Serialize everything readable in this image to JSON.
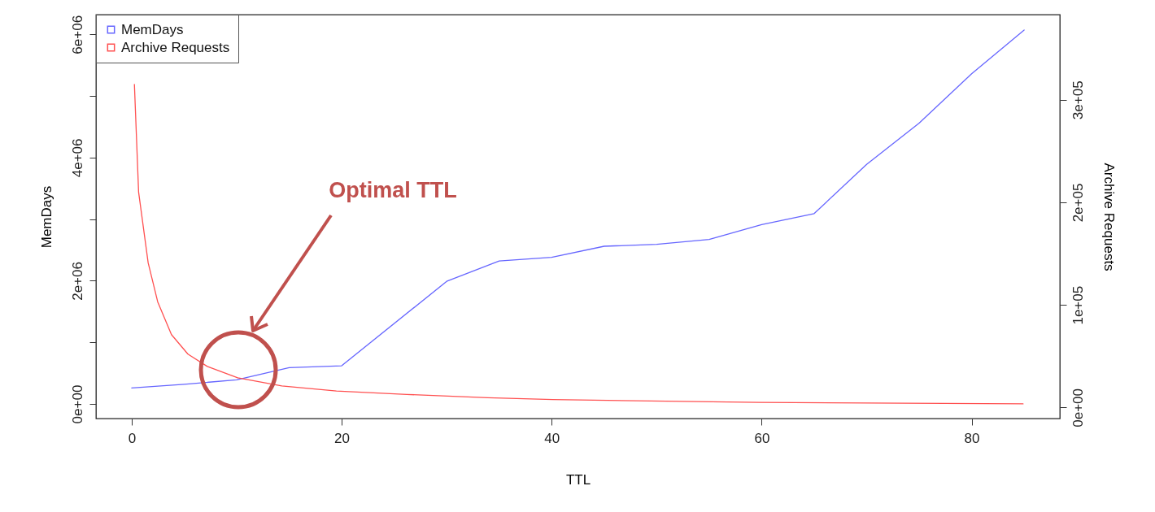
{
  "chart_data": {
    "type": "line",
    "xlabel": "TTL",
    "ylabel": "MemDays",
    "y2label": "Archive Requests",
    "xlim": [
      -3.4,
      88.4
    ],
    "xticks": [
      0,
      20,
      40,
      60,
      80
    ],
    "ylim": [
      -237000,
      6320000
    ],
    "yticks": [
      {
        "value": 0,
        "label": "0e+00"
      },
      {
        "value": 1000000,
        "label": null
      },
      {
        "value": 2000000,
        "label": "2e+06"
      },
      {
        "value": 3000000,
        "label": null
      },
      {
        "value": 4000000,
        "label": "4e+06"
      },
      {
        "value": 5000000,
        "label": null
      },
      {
        "value": 6000000,
        "label": "6e+06"
      }
    ],
    "y2lim": [
      -10800,
      383000
    ],
    "y2ticks": [
      {
        "value": 0,
        "label": "0e+00"
      },
      {
        "value": 100000,
        "label": "1e+05"
      },
      {
        "value": 200000,
        "label": "2e+05"
      },
      {
        "value": 300000,
        "label": "3e+05"
      }
    ],
    "legend": "top left",
    "line_style": "solid",
    "series": [
      {
        "name": "MemDays",
        "color": "#6666ff",
        "x": [
          0,
          5,
          10,
          15,
          20,
          30,
          35,
          40,
          45,
          50,
          55,
          60,
          65,
          70,
          75,
          80,
          85
        ],
        "values": [
          260000,
          320000,
          390000,
          590000,
          620000,
          1990000,
          2320000,
          2380000,
          2560000,
          2590000,
          2670000,
          2910000,
          3090000,
          3890000,
          4560000,
          5360000,
          6070000
        ]
      },
      {
        "name": "Archive Requests",
        "color": "#ff5050",
        "axis": "y2",
        "x": [
          0.26,
          0.66,
          1.57,
          2.48,
          3.79,
          5.36,
          7.2,
          10.1,
          14.3,
          19.5,
          26.2,
          33.9,
          40.1,
          49.4,
          59.7,
          84.9
        ],
        "values": [
          315000,
          210000,
          141000,
          103000,
          71000,
          52000,
          40000,
          29000,
          21000,
          16000,
          12700,
          9500,
          7700,
          6300,
          5000,
          3500
        ]
      }
    ],
    "annotations": [
      "Optimal TTL"
    ]
  }
}
